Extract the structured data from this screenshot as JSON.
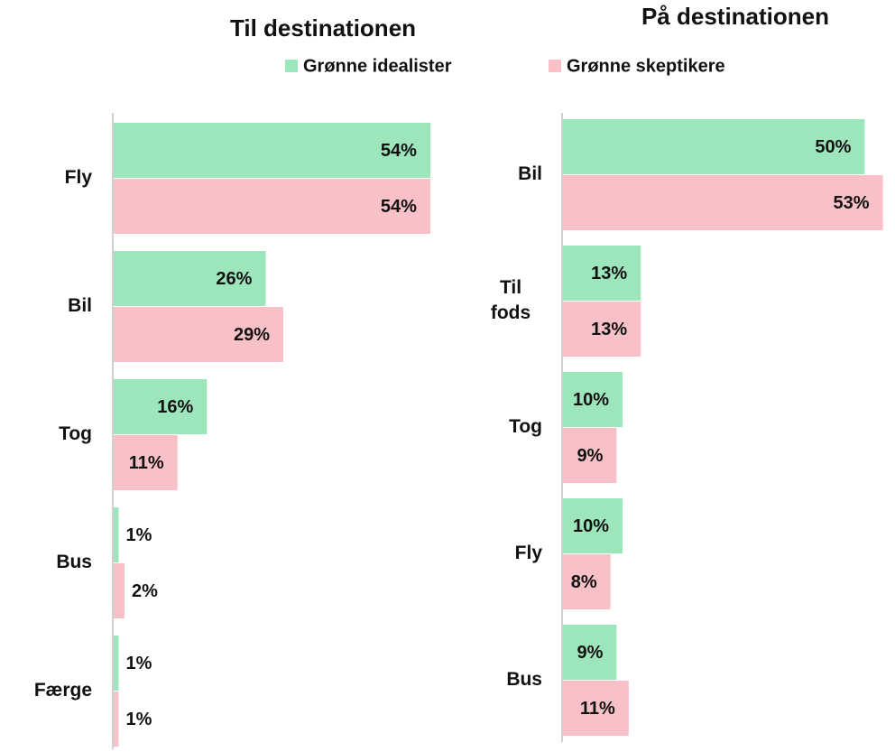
{
  "chart_data": [
    {
      "type": "barh",
      "title": "Til destinationen",
      "categories": [
        "Fly",
        "Bil",
        "Tog",
        "Bus",
        "Færge"
      ],
      "series": [
        {
          "name": "Grønne idealister",
          "color": "#9de5bb",
          "values": [
            54,
            26,
            16,
            1,
            1
          ],
          "value_labels": [
            "54%",
            "26%",
            "16%",
            "1%",
            "1%"
          ]
        },
        {
          "name": "Grønne skeptikere",
          "color": "#f7c1c7",
          "values": [
            54,
            29,
            11,
            2,
            1
          ],
          "value_labels": [
            "54%",
            "29%",
            "11%",
            "2%",
            "1%"
          ]
        }
      ],
      "xlim": [
        0,
        56
      ]
    },
    {
      "type": "barh",
      "title": "På destinationen",
      "categories": [
        "Bil",
        "Til fods",
        "Tog",
        "Fly",
        "Bus"
      ],
      "series": [
        {
          "color": "#9de5bb",
          "values": [
            50,
            13,
            10,
            10,
            9
          ],
          "value_labels": [
            "50%",
            "13%",
            "10%",
            "10%",
            "9%"
          ]
        },
        {
          "color": "#f7c1c7",
          "values": [
            53,
            13,
            9,
            8,
            11
          ],
          "value_labels": [
            "53%",
            "13%",
            "9%",
            "8%",
            "11%"
          ]
        }
      ],
      "xlim": [
        0,
        55
      ]
    }
  ]
}
